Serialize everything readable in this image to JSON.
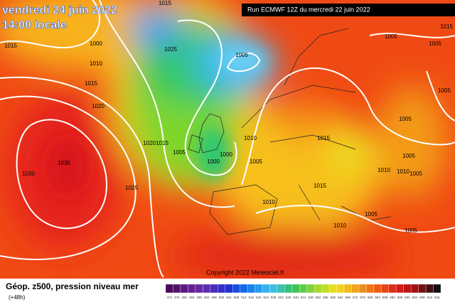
{
  "header": {
    "title": "vendredi 24 juin 2022",
    "subtitle": "14:00 locale",
    "run": "Run ECMWF 12Z du mercredi 22 juin 2022"
  },
  "copyright": "Copyright 2022 Meteociel.fr",
  "footer": {
    "caption": "Géop. z500, pression niveau mer",
    "lead": "(+48h)"
  },
  "isobar_labels": [
    "1015",
    "1015",
    "1000",
    "1025",
    "1005",
    "1010",
    "1015",
    "1020",
    "1005",
    "1015",
    "1005",
    "1005",
    "1005",
    "1010",
    "1015",
    "1020",
    "1015",
    "1005",
    "1000",
    "1000",
    "1035",
    "1030",
    "1005",
    "1010",
    "1005",
    "1010",
    "1005",
    "1025",
    "1015",
    "1010",
    "1005",
    "1010",
    "1005"
  ],
  "scale": [
    472,
    476,
    480,
    484,
    488,
    492,
    496,
    500,
    504,
    508,
    512,
    516,
    520,
    524,
    528,
    532,
    536,
    540,
    544,
    548,
    552,
    556,
    560,
    564,
    568,
    572,
    576,
    580,
    584,
    588,
    592,
    596,
    600,
    604,
    608,
    612,
    616
  ]
}
